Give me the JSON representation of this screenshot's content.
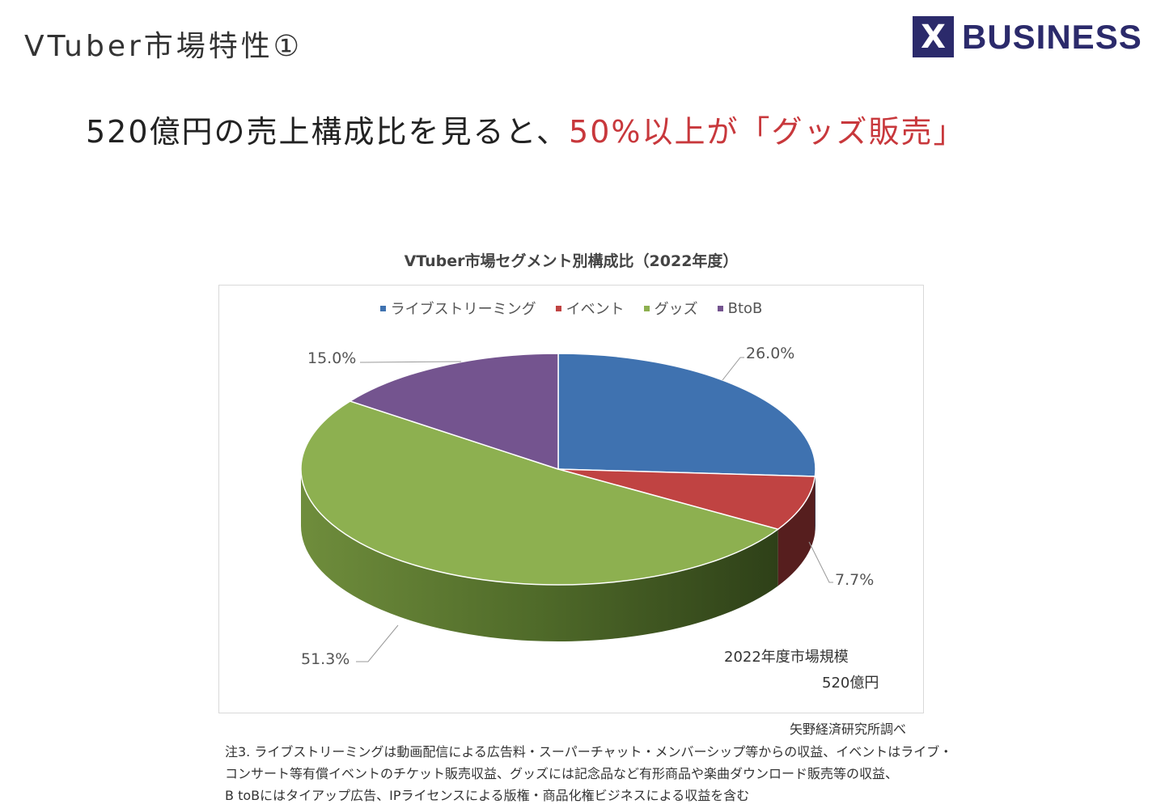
{
  "slide": {
    "title": "VTuber市場特性①",
    "logo": {
      "mark": "X",
      "text": "BUSINESS",
      "color": "#2b2a6b"
    },
    "headline": {
      "prefix": "520億円の売上構成比を見ると、",
      "highlight": "50%以上が「グッズ販売」",
      "highlight_color": "#c8383c"
    }
  },
  "chart_data": {
    "type": "pie",
    "style": "3d",
    "title": "VTuber市場セグメント別構成比（2022年度）",
    "legend_position": "top",
    "slices": [
      {
        "name": "ライブストリーミング",
        "value": 26.0,
        "label": "26.0%",
        "color": "#3f72b0"
      },
      {
        "name": "イベント",
        "value": 7.7,
        "label": "7.7%",
        "color": "#c04342"
      },
      {
        "name": "グッズ",
        "value": 51.3,
        "label": "51.3%",
        "color": "#8db050"
      },
      {
        "name": "BtoB",
        "value": 15.0,
        "label": "15.0%",
        "color": "#74548f"
      }
    ],
    "annotation": {
      "line1": "2022年度市場規模",
      "line2": "520億円"
    }
  },
  "footer": {
    "source": "矢野経済研究所調べ",
    "notes": [
      "注3.  ライブストリーミングは動画配信による広告料・スーパーチャット・メンバーシップ等からの収益、イベントはライブ・",
      "コンサート等有償イベントのチケット販売収益、グッズには記念品など有形商品や楽曲ダウンロード販売等の収益、",
      " B toBにはタイアップ広告、IPライセンスによる版権・商品化権ビジネスによる収益を含む"
    ]
  }
}
